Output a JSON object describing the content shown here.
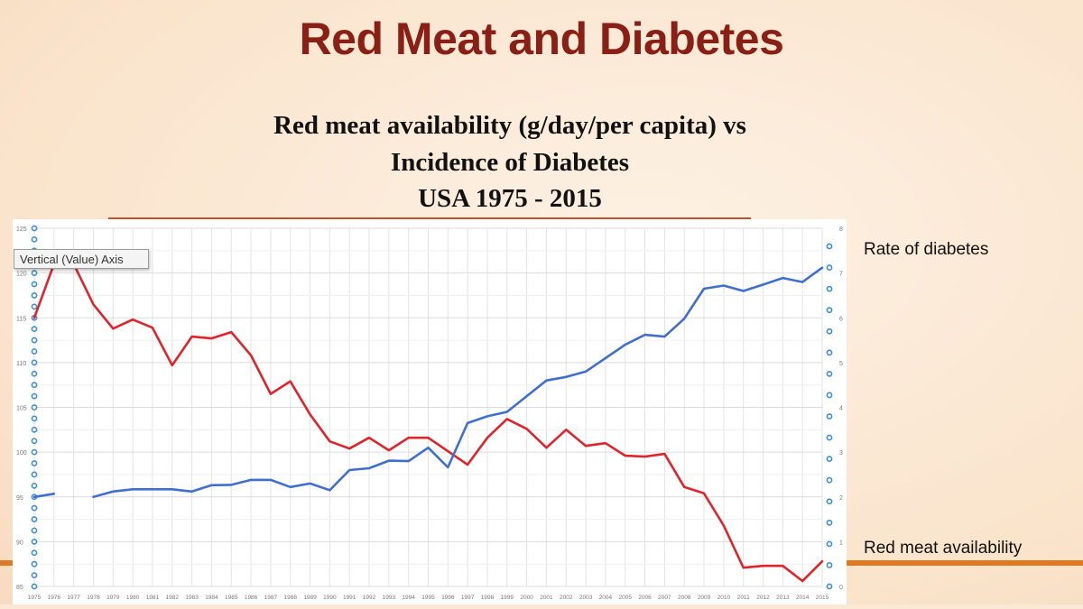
{
  "slide": {
    "title": "Red Meat and Diabetes",
    "subtitle_line1": "Red meat availability (g/day/per capita) vs",
    "subtitle_line2": "Incidence of Diabetes",
    "subtitle_line3": "USA 1975 - 2015"
  },
  "labels": {
    "rate_of_diabetes": "Rate of diabetes",
    "red_meat_availability": "Red meat availability"
  },
  "tooltip": {
    "text": "Vertical (Value) Axis"
  },
  "colors": {
    "background": "#fbe9d6",
    "title": "#8a1f15",
    "accent_orange": "#e07a22",
    "red_meat_series": "#e0242a",
    "diabetes_series": "#3f6fd0",
    "axis_handle": "#3f8fd8"
  },
  "chart_data": {
    "type": "line",
    "title": "",
    "xlabel": "",
    "ylabel": "",
    "x": [
      1975,
      1976,
      1977,
      1978,
      1979,
      1980,
      1981,
      1982,
      1983,
      1984,
      1985,
      1986,
      1987,
      1988,
      1989,
      1990,
      1991,
      1992,
      1993,
      1994,
      1995,
      1996,
      1997,
      1998,
      1999,
      2000,
      2001,
      2002,
      2003,
      2004,
      2005,
      2006,
      2007,
      2008,
      2009,
      2010,
      2011,
      2012,
      2013,
      2014,
      2015
    ],
    "x_tick_labels": [
      "1975",
      "1976",
      "1977",
      "1978",
      "1979",
      "1980",
      "1981",
      "1982",
      "1983",
      "1984",
      "1985",
      "1986",
      "1987",
      "1988",
      "1989",
      "1990",
      "1991",
      "1992",
      "1993",
      "1994",
      "1995",
      "1996",
      "1997",
      "1998",
      "1999",
      "2000",
      "2001",
      "2002",
      "2003",
      "2004",
      "2005",
      "2006",
      "2007",
      "2008",
      "2009",
      "2010",
      "2011",
      "2012",
      "2013",
      "2014",
      "2015"
    ],
    "y_left": {
      "ylim": [
        85,
        125
      ],
      "ticks": [
        "85",
        "90",
        "95",
        "100",
        "105",
        "110",
        "115",
        "120",
        "125"
      ]
    },
    "y_right": {
      "ylim": [
        0,
        8
      ],
      "ticks": [
        "0",
        "1",
        "2",
        "3",
        "4",
        "5",
        "6",
        "7",
        "8"
      ]
    },
    "series": [
      {
        "axis": "left",
        "values": [
          115,
          121,
          121,
          116.5,
          113.8,
          114.8,
          113.9,
          109.7,
          112.9,
          112.7,
          113.4,
          110.8,
          106.5,
          107.9,
          104.2,
          101.2,
          100.4,
          101.6,
          100.2,
          101.6,
          101.6,
          100.1,
          98.6,
          101.6,
          103.7,
          102.6,
          100.5,
          102.5,
          100.7,
          101,
          99.6,
          99.5,
          99.8,
          96.1,
          95.4,
          91.8,
          87.1,
          87.3,
          87.3,
          85.6,
          87.8
        ]
      },
      {
        "axis": "right",
        "values": [
          2.0,
          2.07,
          null,
          2.0,
          2.12,
          2.17,
          2.17,
          2.17,
          2.12,
          2.26,
          2.27,
          2.38,
          2.38,
          2.22,
          2.3,
          2.15,
          2.6,
          2.64,
          2.81,
          2.8,
          3.1,
          2.66,
          3.65,
          3.8,
          3.9,
          4.25,
          4.6,
          4.68,
          4.8,
          5.1,
          5.4,
          5.62,
          5.58,
          5.98,
          6.65,
          6.72,
          6.6,
          6.74,
          6.89,
          6.8,
          7.12
        ]
      }
    ],
    "grid": true,
    "legend": "none"
  }
}
